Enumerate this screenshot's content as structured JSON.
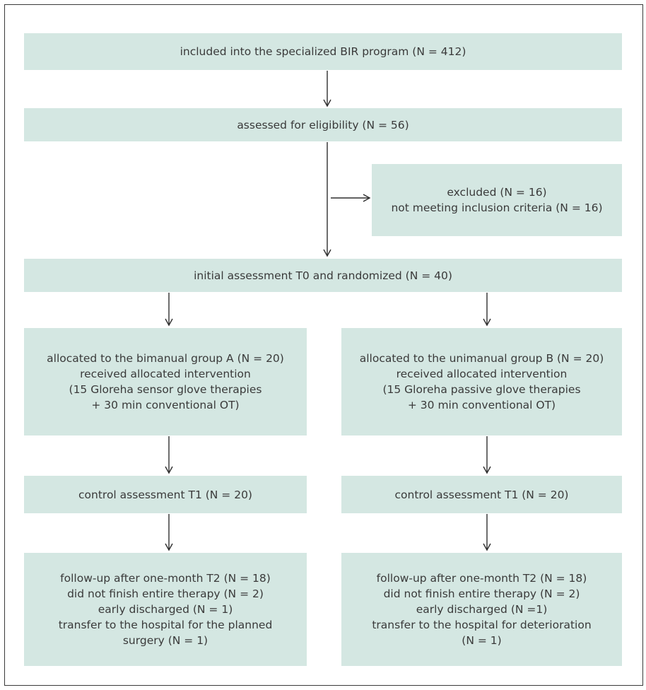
{
  "colors": {
    "box_fill": "#d4e7e2",
    "text": "#3a3a3a",
    "border": "#3a3a3a"
  },
  "boxes": {
    "included": {
      "lines": [
        "included into the specialized BIR program (N = 412)"
      ]
    },
    "eligibility": {
      "lines": [
        "assessed for eligibility (N = 56)"
      ]
    },
    "excluded": {
      "lines": [
        "excluded (N = 16)",
        "not meeting inclusion criteria (N = 16)"
      ]
    },
    "initial": {
      "lines": [
        "initial assessment T0 and randomized (N = 40)"
      ]
    },
    "alloc_a": {
      "lines": [
        "allocated to the bimanual group A (N = 20)",
        "received allocated intervention",
        "(15 Gloreha sensor glove therapies",
        "+ 30 min conventional OT)"
      ]
    },
    "alloc_b": {
      "lines": [
        "allocated to the unimanual group B (N = 20)",
        "received allocated intervention",
        "(15 Gloreha passive glove therapies",
        "+ 30 min conventional OT)"
      ]
    },
    "control_a": {
      "lines": [
        "control assessment T1 (N = 20)"
      ]
    },
    "control_b": {
      "lines": [
        "control assessment T1 (N = 20)"
      ]
    },
    "followup_a": {
      "lines": [
        "follow-up after one-month T2 (N = 18)",
        "did not finish entire therapy (N = 2)",
        "early discharged (N = 1)",
        "transfer to the hospital for the planned",
        "surgery (N = 1)"
      ]
    },
    "followup_b": {
      "lines": [
        "follow-up after one-month T2 (N = 18)",
        "did not finish entire therapy (N = 2)",
        "early discharged (N =1)",
        "transfer to the hospital for deterioration",
        "(N = 1)"
      ]
    }
  }
}
